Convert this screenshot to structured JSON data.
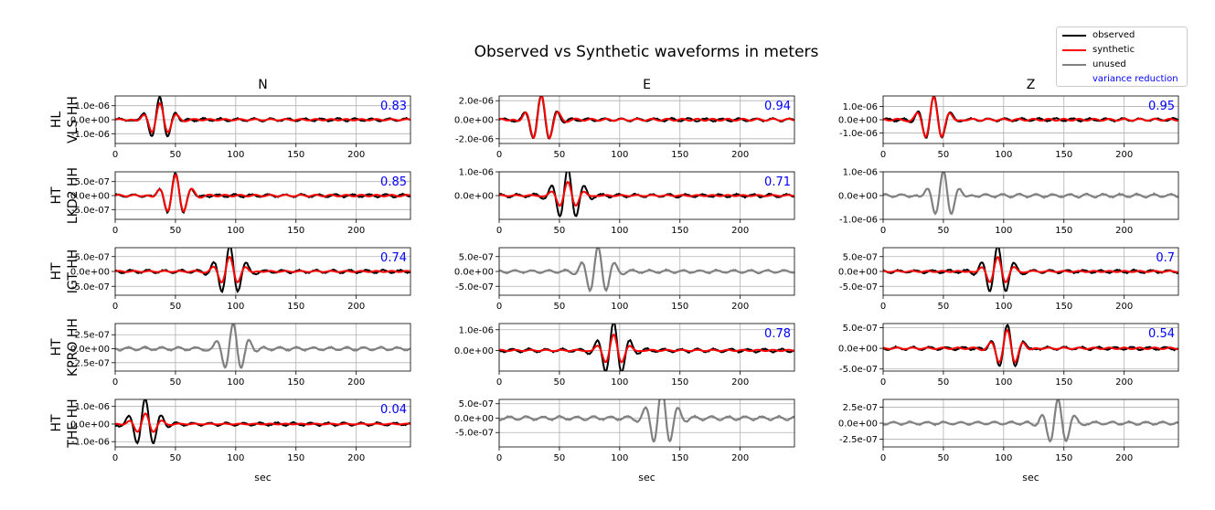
{
  "title": "Observed vs Synthetic waveforms in meters",
  "legend": [
    {
      "label": "observed",
      "color": "#000000",
      "line": true
    },
    {
      "label": "synthetic",
      "color": "#ff0000",
      "line": true
    },
    {
      "label": "unused",
      "color": "#808080",
      "line": true
    },
    {
      "label": "variance reduction",
      "color": "#0000ff",
      "line": false
    }
  ],
  "columns": [
    "N",
    "E",
    "Z"
  ],
  "stations": [
    {
      "network": "HL",
      "station": "VLS HH"
    },
    {
      "network": "HT",
      "station": "LKD2 HH"
    },
    {
      "network": "HT",
      "station": "IGT HH"
    },
    {
      "network": "HT",
      "station": "KPRO HH"
    },
    {
      "network": "HT",
      "station": "THE HH"
    }
  ],
  "x_label": "sec",
  "x_ticks": [
    "0",
    "50",
    "100",
    "150",
    "200"
  ],
  "chart_data": {
    "type": "line",
    "title": "Observed vs Synthetic waveforms in meters",
    "xlabel": "sec",
    "xlim": [
      0,
      245
    ],
    "grid": true,
    "legend_position": "top-right",
    "colors": {
      "observed": "#000000",
      "synthetic": "#ff0000",
      "unused": "#808080",
      "variance_reduction": "#0000ff"
    },
    "panels": [
      {
        "row": 0,
        "col": 0,
        "station": "HL VLS HH",
        "component": "N",
        "used": true,
        "variance_reduction": "0.83",
        "ylim": [
          -1.7e-06,
          1.7e-06
        ],
        "yticks": [
          1e-06,
          0.0,
          -1e-06
        ],
        "ytick_labels": [
          "1.0e-06",
          "0.0e+00",
          "-1.0e-06"
        ],
        "observed_peak": 1.7e-06,
        "synthetic_peak": 1.2e-06,
        "main_arrival_sec": 37
      },
      {
        "row": 0,
        "col": 1,
        "station": "HL VLS HH",
        "component": "E",
        "used": true,
        "variance_reduction": "0.94",
        "ylim": [
          -2.5e-06,
          2.5e-06
        ],
        "yticks": [
          2e-06,
          0.0,
          -2e-06
        ],
        "ytick_labels": [
          "2.0e-06",
          "0.0e+00",
          "-2.0e-06"
        ],
        "observed_peak": 2.6e-06,
        "synthetic_peak": 2.6e-06,
        "main_arrival_sec": 35
      },
      {
        "row": 0,
        "col": 2,
        "station": "HL VLS HH",
        "component": "Z",
        "used": true,
        "variance_reduction": "0.95",
        "ylim": [
          -1.8e-06,
          1.8e-06
        ],
        "yticks": [
          1e-06,
          0.0,
          -1e-06
        ],
        "ytick_labels": [
          "1.0e-06",
          "0.0e+00",
          "-1.0e-06"
        ],
        "observed_peak": 1.8e-06,
        "synthetic_peak": 1.8e-06,
        "main_arrival_sec": 42
      },
      {
        "row": 1,
        "col": 0,
        "station": "HT LKD2 HH",
        "component": "N",
        "used": true,
        "variance_reduction": "0.85",
        "ylim": [
          -8.5e-07,
          8.5e-07
        ],
        "yticks": [
          5e-07,
          0.0,
          -5e-07
        ],
        "ytick_labels": [
          "5.0e-07",
          "0.0e+00",
          "-5.0e-07"
        ],
        "observed_peak": 8.5e-07,
        "synthetic_peak": 7.5e-07,
        "main_arrival_sec": 50
      },
      {
        "row": 1,
        "col": 1,
        "station": "HT LKD2 HH",
        "component": "E",
        "used": true,
        "variance_reduction": "0.71",
        "ylim": [
          -1e-06,
          1e-06
        ],
        "yticks": [
          1e-06,
          0.0
        ],
        "ytick_labels": [
          "1.0e-06",
          "0.0e+00"
        ],
        "observed_peak": 1.1e-06,
        "synthetic_peak": 6e-07,
        "main_arrival_sec": 57
      },
      {
        "row": 1,
        "col": 2,
        "station": "HT LKD2 HH",
        "component": "Z",
        "used": false,
        "variance_reduction": "",
        "ylim": [
          -1e-06,
          1e-06
        ],
        "yticks": [
          1e-06,
          0.0,
          -1e-06
        ],
        "ytick_labels": [
          "1.0e-06",
          "0.0e+00",
          "-1.0e-06"
        ],
        "observed_peak": 1.1e-06,
        "synthetic_peak": 0.0,
        "main_arrival_sec": 50
      },
      {
        "row": 2,
        "col": 0,
        "station": "HT IGT HH",
        "component": "N",
        "used": true,
        "variance_reduction": "0.74",
        "ylim": [
          -8e-07,
          8e-07
        ],
        "yticks": [
          5e-07,
          0.0,
          -5e-07
        ],
        "ytick_labels": [
          "5.0e-07",
          "0.0e+00",
          "-5.0e-07"
        ],
        "observed_peak": 8.5e-07,
        "synthetic_peak": 5e-07,
        "main_arrival_sec": 95
      },
      {
        "row": 2,
        "col": 1,
        "station": "HT IGT HH",
        "component": "E",
        "used": false,
        "variance_reduction": "",
        "ylim": [
          -8e-07,
          8e-07
        ],
        "yticks": [
          5e-07,
          0.0,
          -5e-07
        ],
        "ytick_labels": [
          "5.0e-07",
          "0.0e+00",
          "-5.0e-07"
        ],
        "observed_peak": 8e-07,
        "synthetic_peak": 0.0,
        "main_arrival_sec": 82
      },
      {
        "row": 2,
        "col": 2,
        "station": "HT IGT HH",
        "component": "Z",
        "used": true,
        "variance_reduction": "0.7",
        "ylim": [
          -8e-07,
          8e-07
        ],
        "yticks": [
          5e-07,
          0.0,
          -5e-07
        ],
        "ytick_labels": [
          "5.0e-07",
          "0.0e+00",
          "-5.0e-07"
        ],
        "observed_peak": 8.5e-07,
        "synthetic_peak": 5e-07,
        "main_arrival_sec": 95
      },
      {
        "row": 3,
        "col": 0,
        "station": "HT KPRO HH",
        "component": "N",
        "used": false,
        "variance_reduction": "",
        "ylim": [
          -4e-07,
          4.5e-07
        ],
        "yticks": [
          2.5e-07,
          0.0,
          -2.5e-07
        ],
        "ytick_labels": [
          "2.5e-07",
          "0.0e+00",
          "-2.5e-07"
        ],
        "observed_peak": 4.5e-07,
        "synthetic_peak": 0.0,
        "main_arrival_sec": 98
      },
      {
        "row": 3,
        "col": 1,
        "station": "HT KPRO HH",
        "component": "E",
        "used": true,
        "variance_reduction": "0.78",
        "ylim": [
          -1e-06,
          1.3e-06
        ],
        "yticks": [
          1e-06,
          0.0
        ],
        "ytick_labels": [
          "1.0e-06",
          "0.0e+00"
        ],
        "observed_peak": 1.3e-06,
        "synthetic_peak": 8e-07,
        "main_arrival_sec": 95
      },
      {
        "row": 3,
        "col": 2,
        "station": "HT KPRO HH",
        "component": "Z",
        "used": true,
        "variance_reduction": "0.54",
        "ylim": [
          -5.5e-07,
          6e-07
        ],
        "yticks": [
          5e-07,
          0.0,
          -5e-07
        ],
        "ytick_labels": [
          "5.0e-07",
          "0.0e+00",
          "-5.0e-07"
        ],
        "observed_peak": 6e-07,
        "synthetic_peak": 4.5e-07,
        "main_arrival_sec": 103
      },
      {
        "row": 4,
        "col": 0,
        "station": "HT THE HH",
        "component": "N",
        "used": true,
        "variance_reduction": "0.04",
        "ylim": [
          -1.3e-06,
          1.4e-06
        ],
        "yticks": [
          1e-06,
          0.0,
          -1e-06
        ],
        "ytick_labels": [
          "1.0e-06",
          "0.0e+00",
          "-1.0e-06"
        ],
        "observed_peak": 1.4e-06,
        "synthetic_peak": 6e-07,
        "main_arrival_sec": 25
      },
      {
        "row": 4,
        "col": 1,
        "station": "HT THE HH",
        "component": "E",
        "used": false,
        "variance_reduction": "",
        "ylim": [
          -1e-06,
          6.5e-07
        ],
        "yticks": [
          5e-07,
          0.0,
          -5e-07
        ],
        "ytick_labels": [
          "5.0e-07",
          "0.0e+00",
          "-5.0e-07"
        ],
        "observed_peak": 1e-06,
        "synthetic_peak": 0.0,
        "main_arrival_sec": 135
      },
      {
        "row": 4,
        "col": 2,
        "station": "HT THE HH",
        "component": "Z",
        "used": false,
        "variance_reduction": "",
        "ylim": [
          -3.7e-07,
          3.7e-07
        ],
        "yticks": [
          2.5e-07,
          0.0,
          -2.5e-07
        ],
        "ytick_labels": [
          "2.5e-07",
          "0.0e+00",
          "-2.5e-07"
        ],
        "observed_peak": 3.7e-07,
        "synthetic_peak": 0.0,
        "main_arrival_sec": 145
      }
    ]
  }
}
